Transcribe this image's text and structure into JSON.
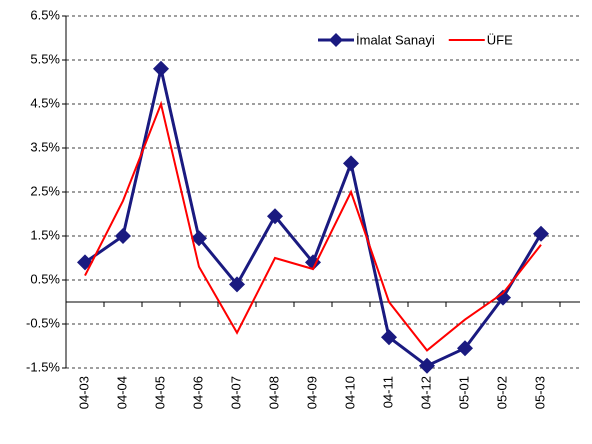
{
  "chart_data": {
    "type": "line",
    "categories": [
      "04-03",
      "04-04",
      "04-05",
      "04-06",
      "04-07",
      "04-08",
      "04-09",
      "04-10",
      "04-11",
      "04-12",
      "05-01",
      "05-02",
      "05-03"
    ],
    "series": [
      {
        "name": "İmalat Sanayi",
        "color": "#1a1a80",
        "marker": "diamond",
        "values": [
          0.9,
          1.5,
          5.3,
          1.45,
          0.4,
          1.95,
          0.9,
          3.15,
          -0.8,
          -1.45,
          -1.05,
          0.1,
          1.55
        ]
      },
      {
        "name": "ÜFE",
        "color": "#ff0000",
        "values": [
          0.6,
          2.3,
          4.5,
          0.8,
          -0.7,
          1.0,
          0.75,
          2.5,
          0.0,
          -1.1,
          -0.4,
          0.2,
          1.3
        ]
      }
    ],
    "ylim": [
      -1.5,
      6.5
    ],
    "yticks": [
      {
        "value": -1.5,
        "label": "-1.5%"
      },
      {
        "value": -0.5,
        "label": "-0.5%"
      },
      {
        "value": 0.5,
        "label": "0.5%"
      },
      {
        "value": 1.5,
        "label": "1.5%"
      },
      {
        "value": 2.5,
        "label": "2.5%"
      },
      {
        "value": 3.5,
        "label": "3.5%"
      },
      {
        "value": 4.5,
        "label": "4.5%"
      },
      {
        "value": 5.5,
        "label": "5.5%"
      },
      {
        "value": 6.5,
        "label": "6.5%"
      }
    ],
    "grid": true,
    "legend": "upper right"
  }
}
